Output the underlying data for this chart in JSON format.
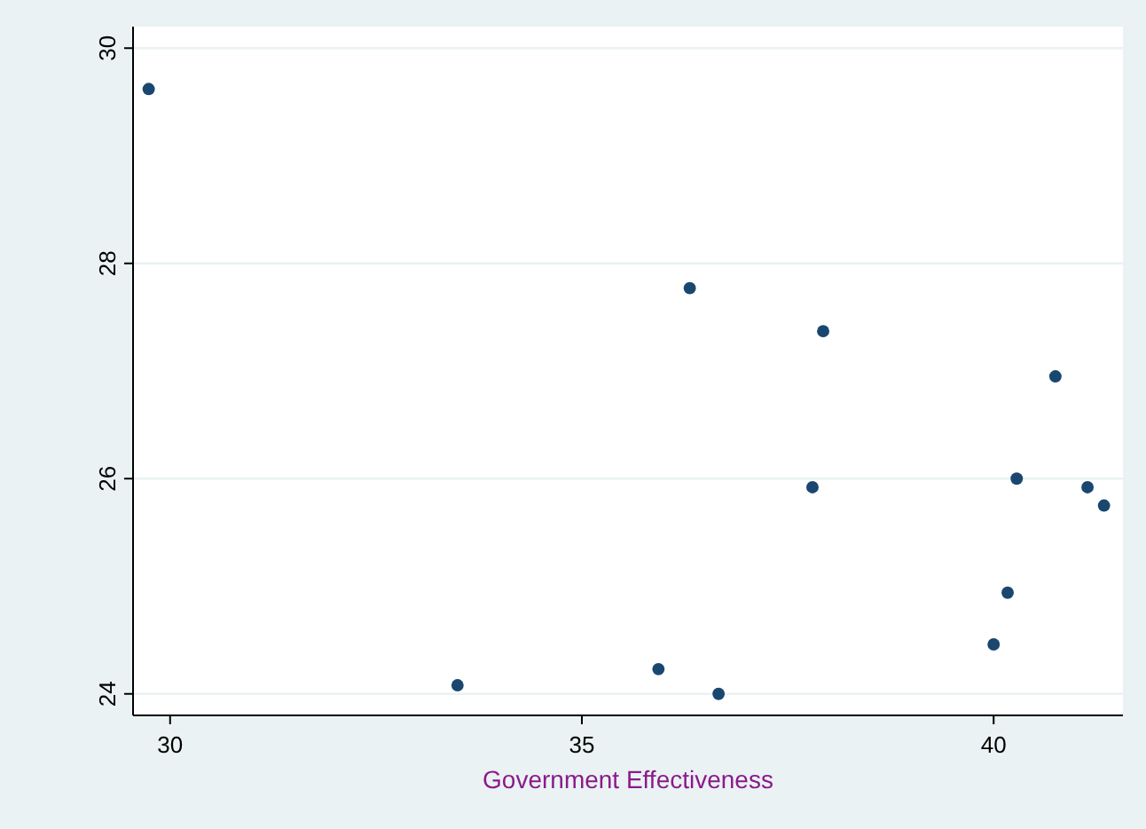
{
  "chart_data": {
    "type": "scatter",
    "xlabel": "Government Effectiveness",
    "x": [
      29.74,
      36.31,
      37.93,
      40.75,
      37.8,
      40.28,
      41.14,
      41.34,
      40.17,
      40.0,
      33.49,
      35.93,
      36.66
    ],
    "series": [
      {
        "color": "#1a476f",
        "values": [
          29.62,
          27.77,
          27.37,
          26.95,
          25.92,
          26.0,
          25.92,
          25.75,
          24.94,
          24.46,
          24.08,
          24.23,
          24.0
        ]
      }
    ],
    "xlim": [
      29.55,
      41.57
    ],
    "xticks": [
      30,
      35,
      40
    ],
    "ylim": [
      23.8,
      30.2
    ],
    "yticks": [
      24,
      26,
      28,
      30
    ],
    "grid": "y",
    "marker": "circle"
  }
}
